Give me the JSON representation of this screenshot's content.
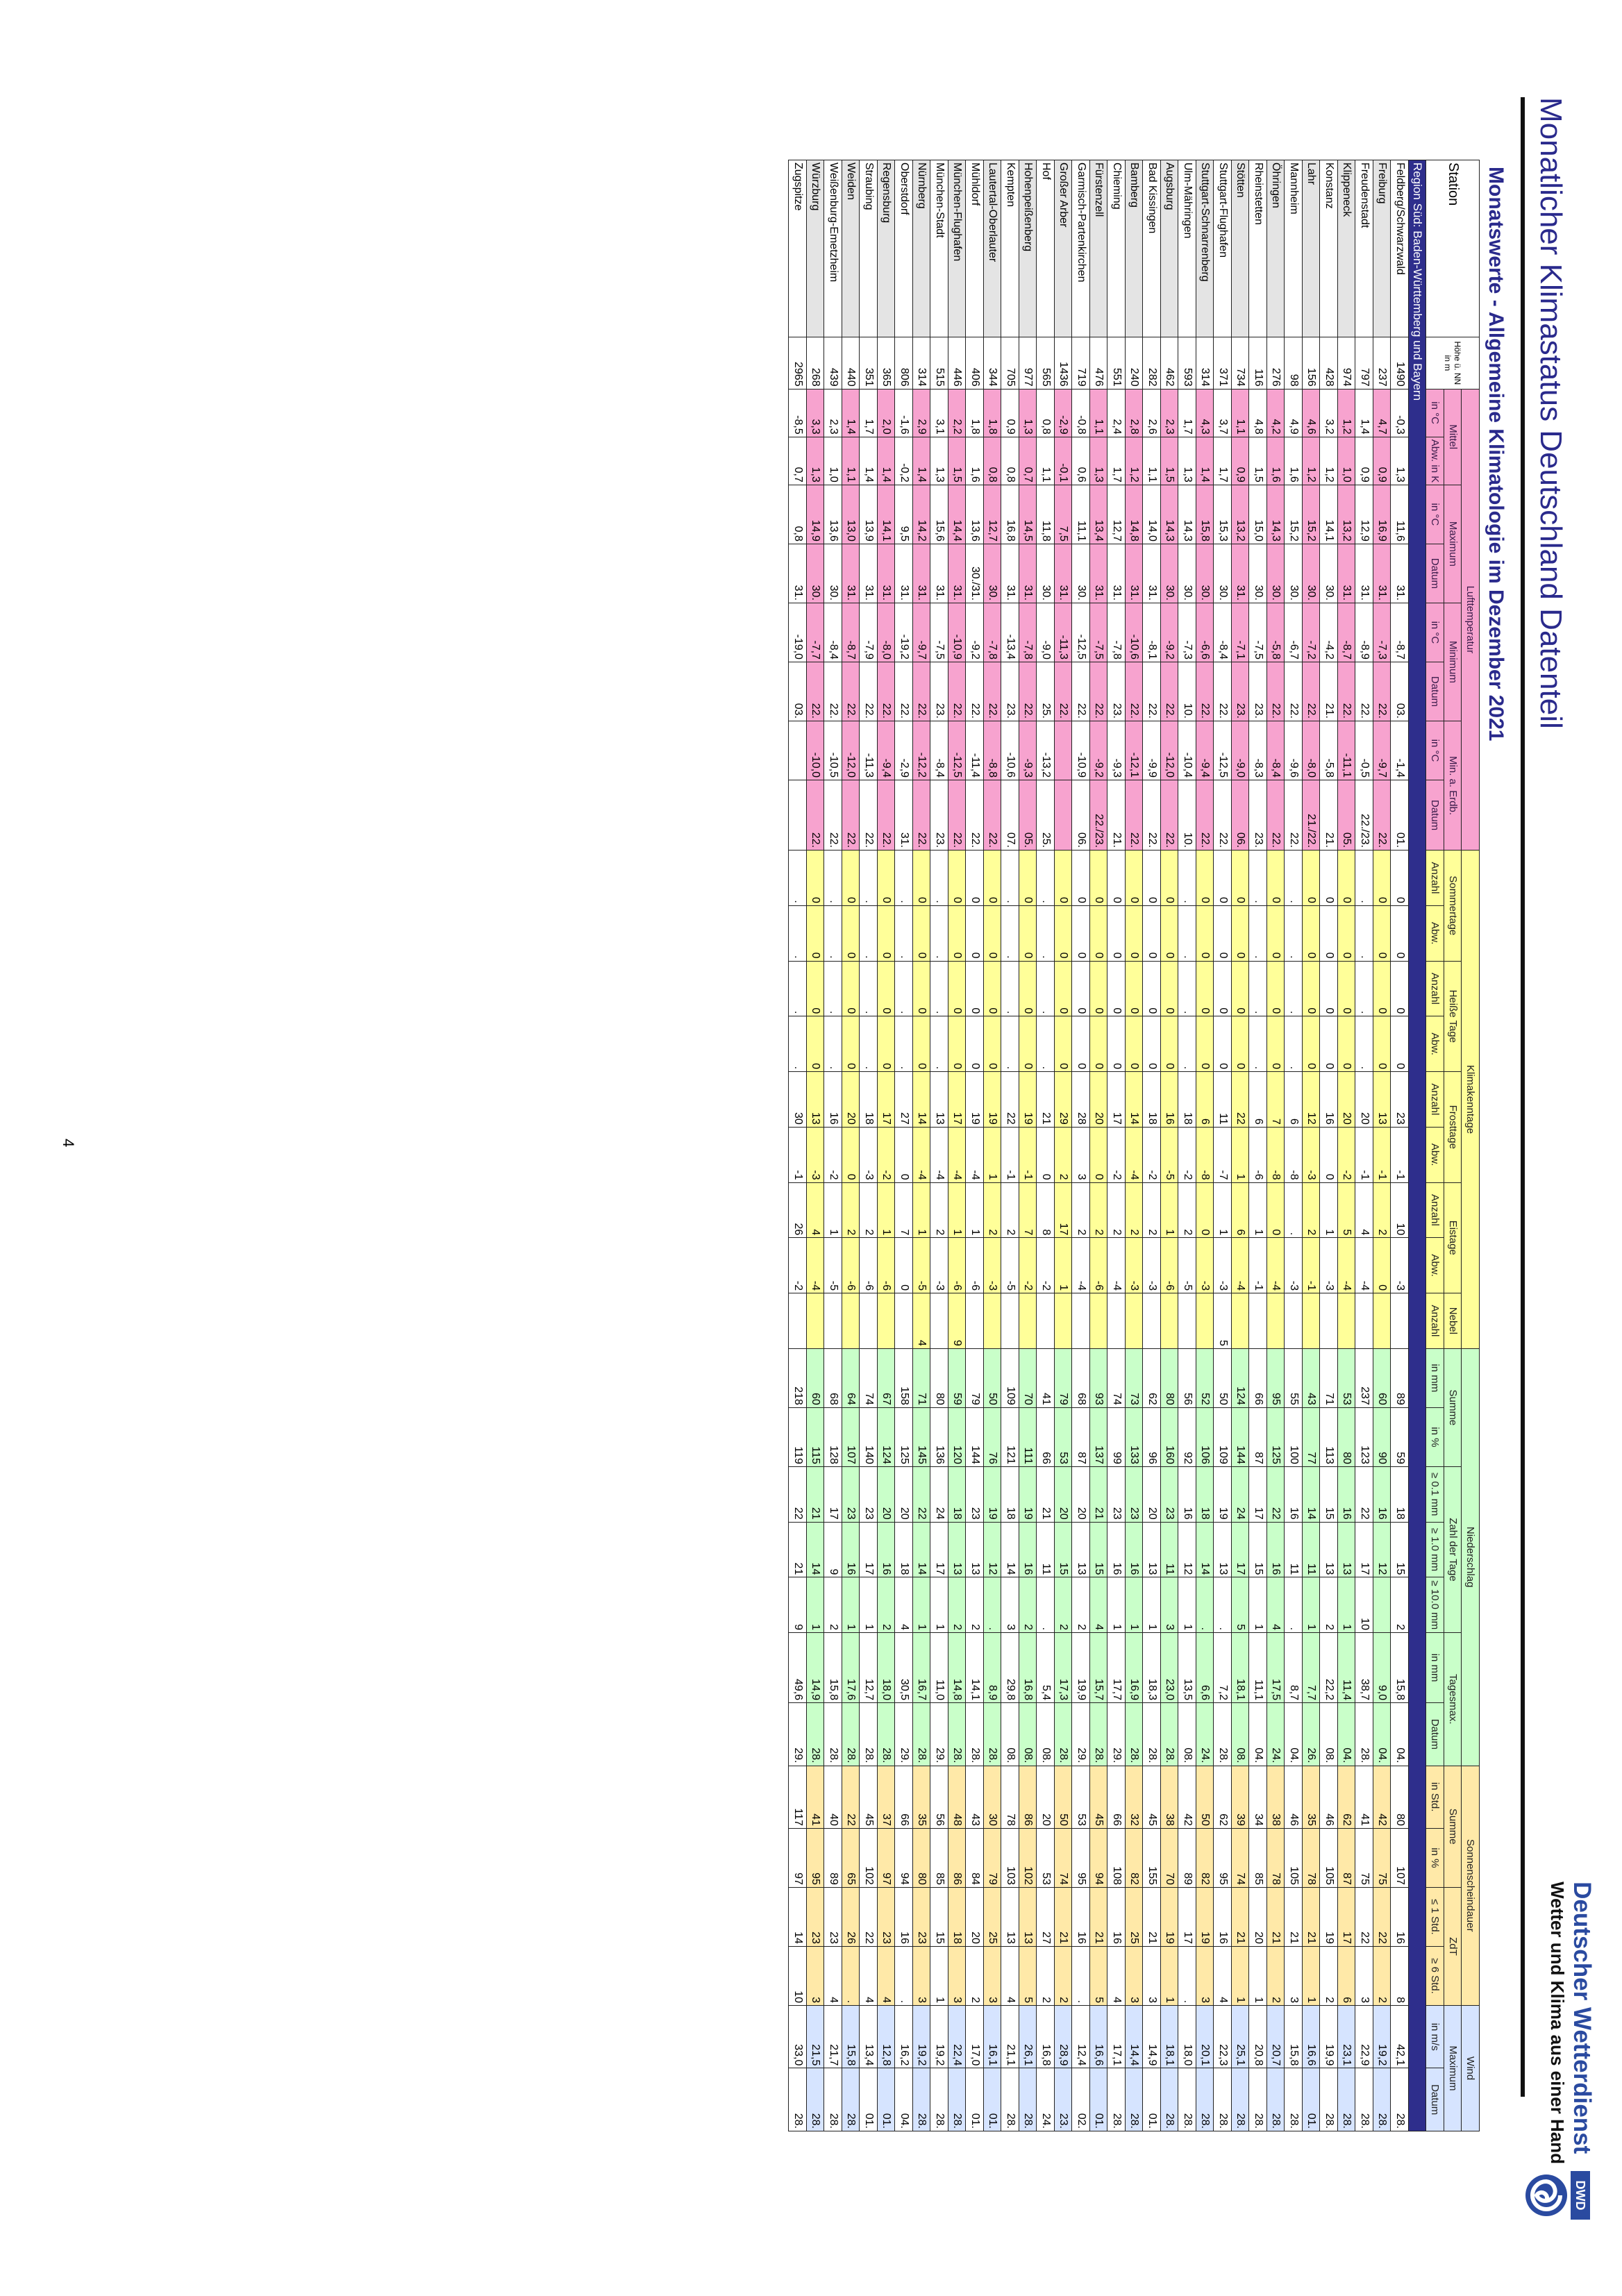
{
  "header": {
    "title": "Monatlicher Klimastatus Deutschland Datenteil",
    "subtitle": "Monatswerte - Allgemeine Klimatologie im Dezember 2021",
    "brand_name": "Deutscher Wetterdienst",
    "brand_tagline": "Wetter und Klima aus einer Hand",
    "logo_text": "DWD"
  },
  "groups": {
    "station": "Station",
    "lufttemperatur": "Lufttemperatur",
    "klimakenntage": "Klimakenntage",
    "niederschlag": "Niederschlag",
    "sonnenscheindauer": "Sonnenscheindauer",
    "wind": "Wind"
  },
  "subgroups": {
    "mittel": "Mittel",
    "maximum": "Maximum",
    "minimum": "Minimum",
    "min_erdb": "Min. a. Erdb.",
    "sommertage": "Sommertage",
    "heisse_tage": "Heiße Tage",
    "frosttage": "Frosttage",
    "eistage": "Eistage",
    "nebel": "Nebel",
    "summe": "Summe",
    "zahl_der_tage": "Zahl der Tage",
    "tagesmax": "Tagesmax.",
    "so_summe": "Summe",
    "zdt": "ZdT",
    "wind_max": "Maximum"
  },
  "units": [
    "Höhe ü. NN in m",
    "in °C",
    "Abw. in K",
    "in °C",
    "Datum",
    "in °C",
    "Datum",
    "in °C",
    "Datum",
    "Anzahl",
    "Abw.",
    "Anzahl",
    "Abw.",
    "Anzahl",
    "Abw.",
    "Anzahl",
    "Abw.",
    "Anzahl",
    "in mm",
    "in %",
    "≥ 0.1 mm",
    "≥ 1.0 mm",
    "≥ 10.0 mm",
    "in mm",
    "Datum",
    "in Std.",
    "in %",
    "≤ 1 Std.",
    "≥ 6 Std.",
    "in m/s",
    "Datum"
  ],
  "region": "Region Süd: Baden-Württemberg und Bayern",
  "page_number": "4",
  "rows": [
    [
      "Feldberg/Schwarzwald",
      "1490",
      "-0,3",
      "1,3",
      "11,6",
      "31.",
      "-8,7",
      "03.",
      "-1,4",
      "01.",
      "0",
      "0",
      "0",
      "0",
      "23",
      "-1",
      "10",
      "-3",
      "",
      "89",
      "59",
      "18",
      "15",
      "2",
      "15,8",
      "04.",
      "80",
      "107",
      "16",
      "8",
      "42,1",
      "28."
    ],
    [
      "Freiburg",
      "237",
      "4,7",
      "0,9",
      "16,9",
      "31.",
      "-7,3",
      "22.",
      "-9,7",
      "22.",
      "0",
      "0",
      "0",
      "0",
      "13",
      "-1",
      "2",
      "0",
      "",
      "60",
      "90",
      "16",
      "12",
      "",
      "9,0",
      "04.",
      "42",
      "75",
      "22",
      "2",
      "19,2",
      "28."
    ],
    [
      "Freudenstadt",
      "797",
      "1,4",
      "0,9",
      "12,9",
      "31.",
      "-8,9",
      "22.",
      "-0,5",
      "22./23.",
      ".",
      ".",
      ".",
      ".",
      "20",
      "-1",
      "4",
      "-4",
      "",
      "237",
      "123",
      "22",
      "17",
      "10",
      "38,7",
      "28.",
      "41",
      "75",
      "22",
      "3",
      "22,9",
      "28."
    ],
    [
      "Klippeneck",
      "974",
      "1,2",
      "1,0",
      "13,2",
      "31.",
      "-8,7",
      "22.",
      "-11,1",
      "05.",
      "0",
      "0",
      "0",
      "0",
      "20",
      "-2",
      "5",
      "-4",
      "",
      "53",
      "80",
      "16",
      "13",
      "1",
      "11,4",
      "04.",
      "62",
      "87",
      "17",
      "6",
      "23,1",
      "28."
    ],
    [
      "Konstanz",
      "428",
      "3,2",
      "1,2",
      "14,1",
      "30.",
      "-4,2",
      "21.",
      "-5,8",
      "21.",
      "0",
      "0",
      "0",
      "0",
      "16",
      "0",
      "1",
      "-3",
      "",
      "71",
      "113",
      "15",
      "13",
      "2",
      "22,2",
      "08.",
      "46",
      "105",
      "19",
      "2",
      "19,9",
      "28."
    ],
    [
      "Lahr",
      "156",
      "4,6",
      "1,2",
      "15,2",
      "30.",
      "-7,2",
      "22.",
      "-8,0",
      "21./22.",
      "0",
      "0",
      "0",
      "0",
      "12",
      "-3",
      "2",
      "-1",
      "",
      "43",
      "77",
      "14",
      "11",
      "1",
      "7,7",
      "26.",
      "35",
      "78",
      "21",
      "1",
      "16,6",
      "01."
    ],
    [
      "Mannheim",
      "98",
      "4,9",
      "1,6",
      "15,2",
      "30.",
      "-6,7",
      "22.",
      "-9,6",
      "22.",
      ".",
      ".",
      ".",
      ".",
      "6",
      "-8",
      ".",
      "-3",
      "",
      "55",
      "100",
      "16",
      "11",
      ".",
      "8,7",
      "04.",
      "46",
      "105",
      "21",
      "3",
      "15,8",
      "28."
    ],
    [
      "Öhringen",
      "276",
      "4,2",
      "1,6",
      "14,3",
      "30.",
      "-5,8",
      "22.",
      "-8,4",
      "22.",
      "0",
      "0",
      "0",
      "0",
      "7",
      "-8",
      "0",
      "-4",
      "",
      "95",
      "125",
      "22",
      "16",
      "4",
      "17,5",
      "24.",
      "38",
      "78",
      "21",
      "2",
      "20,7",
      "28."
    ],
    [
      "Rheinstetten",
      "116",
      "4,8",
      "1,5",
      "15,0",
      "30.",
      "-7,5",
      "23.",
      "-8,3",
      "23.",
      ".",
      ".",
      ".",
      ".",
      "6",
      "-6",
      "1",
      "-1",
      "",
      "66",
      "87",
      "17",
      "15",
      "1",
      "11,1",
      "04.",
      "34",
      "85",
      "20",
      "1",
      "20,8",
      "28."
    ],
    [
      "Stötten",
      "734",
      "1,1",
      "0,9",
      "13,2",
      "31.",
      "-7,1",
      "23.",
      "-9,0",
      "06.",
      "0",
      "0",
      "0",
      "0",
      "22",
      "1",
      "6",
      "-4",
      "",
      "124",
      "144",
      "24",
      "17",
      "5",
      "18,1",
      "08.",
      "39",
      "74",
      "21",
      "1",
      "25,1",
      "28."
    ],
    [
      "Stuttgart-Flughafen",
      "371",
      "3,7",
      "1,7",
      "15,3",
      "30.",
      "-8,4",
      "22.",
      "-12,5",
      "22.",
      "0",
      "0",
      "0",
      "0",
      "11",
      "-7",
      "1",
      "-3",
      "5",
      "50",
      "109",
      "19",
      "13",
      ".",
      "7,2",
      "28.",
      "62",
      "95",
      "16",
      "4",
      "22,3",
      "28."
    ],
    [
      "Stuttgart-Schnarrenberg",
      "314",
      "4,3",
      "1,4",
      "15,8",
      "30.",
      "-6,6",
      "22.",
      "-9,4",
      "22.",
      "0",
      "0",
      "0",
      "0",
      "6",
      "-8",
      "0",
      "-3",
      "",
      "52",
      "106",
      "18",
      "14",
      ".",
      "6,6",
      "24.",
      "50",
      "82",
      "19",
      "3",
      "20,1",
      "28."
    ],
    [
      "Ulm-Mähringen",
      "593",
      "1,7",
      "1,3",
      "14,3",
      "30.",
      "-7,3",
      "10.",
      "-10,4",
      "10.",
      ".",
      ".",
      ".",
      ".",
      "18",
      "-2",
      "2",
      "-5",
      "",
      "56",
      "92",
      "16",
      "12",
      "1",
      "13,5",
      "08.",
      "42",
      "89",
      "17",
      ".",
      "18,0",
      "28."
    ],
    [
      "Augsburg",
      "462",
      "2,3",
      "1,5",
      "14,3",
      "30.",
      "-9,2",
      "22.",
      "-12,0",
      "22.",
      "0",
      "0",
      "0",
      "0",
      "16",
      "-5",
      "1",
      "-6",
      "",
      "80",
      "160",
      "23",
      "11",
      "3",
      "23,0",
      "28.",
      "38",
      "70",
      "19",
      "1",
      "18,1",
      "28."
    ],
    [
      "Bad Kissingen",
      "282",
      "2,6",
      "1,1",
      "14,0",
      "31.",
      "-8,1",
      "22.",
      "-9,9",
      "22.",
      "0",
      "0",
      "0",
      "0",
      "18",
      "-2",
      "2",
      "-3",
      "",
      "62",
      "96",
      "20",
      "13",
      "1",
      "18,3",
      "28.",
      "45",
      "155",
      "21",
      "3",
      "14,9",
      "01."
    ],
    [
      "Bamberg",
      "240",
      "2,8",
      "1,2",
      "14,8",
      "31.",
      "-10,6",
      "22.",
      "-12,1",
      "22.",
      "0",
      "0",
      "0",
      "0",
      "14",
      "-4",
      "2",
      "-3",
      "",
      "73",
      "133",
      "23",
      "16",
      "1",
      "16,9",
      "28.",
      "32",
      "82",
      "25",
      "3",
      "14,4",
      "28."
    ],
    [
      "Chieming",
      "551",
      "2,4",
      "1,7",
      "12,7",
      "31.",
      "-7,8",
      "23.",
      "-9,3",
      "21.",
      "0",
      "0",
      "0",
      "0",
      "17",
      "-2",
      "2",
      "-4",
      "",
      "74",
      "99",
      "23",
      "16",
      "1",
      "17,7",
      "29.",
      "66",
      "108",
      "16",
      "4",
      "17,1",
      "28."
    ],
    [
      "Fürstenzell",
      "476",
      "1,1",
      "1,3",
      "13,4",
      "31.",
      "-7,5",
      "22.",
      "-9,2",
      "22./23.",
      "0",
      "0",
      "0",
      "0",
      "20",
      "0",
      "2",
      "-6",
      "",
      "93",
      "137",
      "21",
      "15",
      "4",
      "15,7",
      "28.",
      "45",
      "94",
      "21",
      "5",
      "16,6",
      "01."
    ],
    [
      "Garmisch-Partenkirchen",
      "719",
      "-0,8",
      "0,6",
      "11,1",
      "30.",
      "-12,5",
      "22.",
      "-10,9",
      "06.",
      "0",
      "0",
      "0",
      "0",
      "28",
      "3",
      "2",
      "-4",
      "",
      "68",
      "87",
      "20",
      "13",
      "2",
      "19,9",
      "29.",
      "53",
      "95",
      "16",
      ".",
      "12,4",
      "02."
    ],
    [
      "Großer Arber",
      "1436",
      "-2,9",
      "-0,1",
      "7,5",
      "31.",
      "-11,3",
      "22.",
      "",
      "",
      "0",
      "0",
      "0",
      "0",
      "29",
      "2",
      "17",
      "1",
      "",
      "79",
      "53",
      "20",
      "15",
      "2",
      "17,3",
      "28.",
      "50",
      "74",
      "21",
      "2",
      "28,9",
      "23."
    ],
    [
      "Hof",
      "565",
      "0,8",
      "1,1",
      "11,8",
      "30.",
      "-9,0",
      "25.",
      "-13,2",
      "25.",
      ".",
      ".",
      ".",
      ".",
      "21",
      "0",
      "8",
      "-2",
      "",
      "41",
      "66",
      "21",
      "11",
      ".",
      "5,4",
      "08.",
      "20",
      "53",
      "27",
      "2",
      "16,8",
      "24."
    ],
    [
      "Hohenpeißenberg",
      "977",
      "1,3",
      "0,7",
      "14,5",
      "31.",
      "-7,8",
      "22.",
      "-9,3",
      "05.",
      "0",
      "0",
      "0",
      "0",
      "19",
      "-1",
      "7",
      "-2",
      "",
      "70",
      "111",
      "19",
      "16",
      "2",
      "16,8",
      "08.",
      "86",
      "102",
      "13",
      "5",
      "26,1",
      "28."
    ],
    [
      "Kempten",
      "705",
      "0,9",
      "0,8",
      "16,8",
      "31.",
      "-13,4",
      "23.",
      "-10,6",
      "07.",
      ".",
      ".",
      ".",
      ".",
      "22",
      "-1",
      "2",
      "-5",
      "",
      "109",
      "121",
      "18",
      "14",
      "3",
      "29,8",
      "08.",
      "78",
      "103",
      "13",
      "4",
      "21,1",
      "28."
    ],
    [
      "Lautertal-Oberlauter",
      "344",
      "1,8",
      "0,8",
      "12,7",
      "30.",
      "-7,8",
      "22.",
      "-8,8",
      "22.",
      "0",
      "0",
      "0",
      "0",
      "19",
      "1",
      "2",
      "-3",
      "",
      "50",
      "76",
      "19",
      "12",
      ".",
      "8,9",
      "28.",
      "30",
      "79",
      "25",
      "3",
      "16,1",
      "01."
    ],
    [
      "Mühldorf",
      "406",
      "1,8",
      "1,6",
      "13,6",
      "30./31.",
      "-9,2",
      "22.",
      "-11,4",
      "22.",
      "0",
      "0",
      "0",
      "0",
      "19",
      "-4",
      "1",
      "-6",
      "",
      "79",
      "144",
      "23",
      "13",
      "2",
      "14,1",
      "28.",
      "43",
      "84",
      "20",
      "2",
      "17,0",
      "01."
    ],
    [
      "München-Flughafen",
      "446",
      "2,2",
      "1,5",
      "14,4",
      "31.",
      "-10,9",
      "22.",
      "-12,5",
      "22.",
      "0",
      "0",
      "0",
      "0",
      "17",
      "-4",
      "1",
      "-6",
      "9",
      "59",
      "120",
      "18",
      "13",
      "2",
      "14,8",
      "28.",
      "48",
      "86",
      "18",
      "3",
      "22,4",
      "28."
    ],
    [
      "München-Stadt",
      "515",
      "3,1",
      "1,3",
      "15,6",
      "31.",
      "-7,5",
      "23.",
      "-8,4",
      "23.",
      ".",
      ".",
      ".",
      ".",
      "13",
      "-4",
      "2",
      "-3",
      "",
      "80",
      "136",
      "24",
      "17",
      "1",
      "11,0",
      "29.",
      "56",
      "85",
      "15",
      "1",
      "19,2",
      "28."
    ],
    [
      "Nürnberg",
      "314",
      "2,9",
      "1,4",
      "14,2",
      "31.",
      "-9,7",
      "22.",
      "-12,2",
      "22.",
      "0",
      "0",
      "0",
      "0",
      "14",
      "-4",
      "1",
      "-5",
      "4",
      "71",
      "145",
      "22",
      "14",
      "1",
      "16,7",
      "28.",
      "35",
      "80",
      "23",
      "3",
      "19,2",
      "28."
    ],
    [
      "Oberstdorf",
      "806",
      "-1,6",
      "-0,2",
      "9,5",
      "31.",
      "-19,2",
      "22.",
      "-2,9",
      "31.",
      ".",
      ".",
      ".",
      ".",
      "27",
      "0",
      "7",
      "0",
      "",
      "158",
      "125",
      "20",
      "18",
      "4",
      "30,5",
      "29.",
      "66",
      "94",
      "16",
      ".",
      "16,2",
      "04."
    ],
    [
      "Regensburg",
      "365",
      "2,0",
      "1,4",
      "14,1",
      "31.",
      "-8,0",
      "22.",
      "-9,4",
      "22.",
      "0",
      "0",
      "0",
      "0",
      "17",
      "-2",
      "1",
      "-6",
      "",
      "67",
      "124",
      "20",
      "16",
      "2",
      "18,0",
      "28.",
      "37",
      "97",
      "23",
      "4",
      "12,8",
      "01."
    ],
    [
      "Straubing",
      "351",
      "1,7",
      "1,4",
      "13,9",
      "31.",
      "-7,9",
      "22.",
      "-11,3",
      "22.",
      ".",
      ".",
      ".",
      ".",
      "18",
      "-3",
      "2",
      "-6",
      "",
      "74",
      "140",
      "23",
      "17",
      "1",
      "12,7",
      "28.",
      "45",
      "102",
      "22",
      "4",
      "13,4",
      "01."
    ],
    [
      "Weiden",
      "440",
      "1,4",
      "1,1",
      "13,0",
      "31.",
      "-8,7",
      "22.",
      "-12,0",
      "22.",
      "0",
      "0",
      "0",
      "0",
      "20",
      "0",
      "2",
      "-6",
      "",
      "64",
      "107",
      "23",
      "16",
      "1",
      "17,6",
      "28.",
      "22",
      "65",
      "26",
      ".",
      "15,8",
      "28."
    ],
    [
      "Weißenburg-Emetzheim",
      "439",
      "2,3",
      "1,0",
      "13,6",
      "30.",
      "-8,4",
      "22.",
      "-10,5",
      "22.",
      ".",
      ".",
      ".",
      ".",
      "16",
      "-2",
      "1",
      "-5",
      "",
      "68",
      "128",
      "17",
      "9",
      "2",
      "15,8",
      "28.",
      "40",
      "89",
      "23",
      "4",
      "21,7",
      "28."
    ],
    [
      "Würzburg",
      "268",
      "3,3",
      "1,3",
      "14,9",
      "30.",
      "-7,7",
      "22.",
      "-10,0",
      "22.",
      "0",
      "0",
      "0",
      "0",
      "13",
      "-3",
      "4",
      "-4",
      "",
      "60",
      "115",
      "21",
      "14",
      "1",
      "14,9",
      "28.",
      "41",
      "95",
      "23",
      "3",
      "21,5",
      "28."
    ],
    [
      "Zugspitze",
      "2965",
      "-8,5",
      "0,7",
      "0,8",
      "31.",
      "-19,0",
      "03.",
      "",
      "",
      ".",
      ".",
      ".",
      ".",
      "30",
      "-1",
      "26",
      "-2",
      "",
      "218",
      "119",
      "22",
      "21",
      "9",
      "49,6",
      "29.",
      "117",
      "97",
      "14",
      "10",
      "33,0",
      "28."
    ]
  ]
}
